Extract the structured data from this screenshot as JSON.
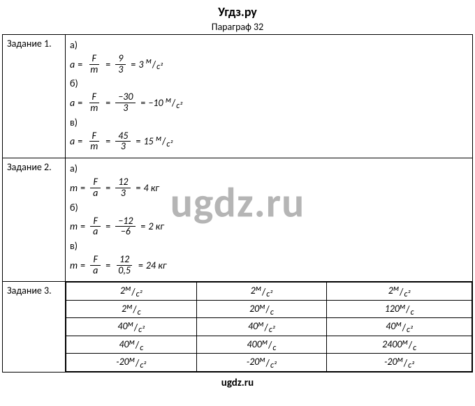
{
  "header": {
    "site": "Угдз.ру",
    "paragraph": "Параграф 32"
  },
  "watermark": "ugdz.ru",
  "footer": "ugdz.ru",
  "tasks": {
    "t1": {
      "label": "Задание 1.",
      "parts": {
        "a": {
          "letter": "а)",
          "lhs": "a",
          "var_num": "F",
          "var_den": "m",
          "num": "9",
          "den": "3",
          "result": "3",
          "unit_num": "м",
          "unit_den": "с²"
        },
        "b": {
          "letter": "б)",
          "lhs": "a",
          "var_num": "F",
          "var_den": "m",
          "num": "−30",
          "den": "3",
          "result": "−10",
          "unit_num": "м",
          "unit_den": "с²"
        },
        "v": {
          "letter": "в)",
          "lhs": "a",
          "var_num": "F",
          "var_den": "m",
          "num": "45",
          "den": "3",
          "result": "15",
          "unit_num": "м",
          "unit_den": "с²"
        }
      }
    },
    "t2": {
      "label": "Задание 2.",
      "parts": {
        "a": {
          "letter": "а)",
          "lhs": "m",
          "var_num": "F",
          "var_den": "a",
          "num": "12",
          "den": "3",
          "result": "4 кг"
        },
        "b": {
          "letter": "б)",
          "lhs": "m",
          "var_num": "F",
          "var_den": "a",
          "num": "−12",
          "den": "−6",
          "result": "2 кг"
        },
        "v": {
          "letter": "в)",
          "lhs": "m",
          "var_num": "F",
          "var_den": "a",
          "num": "12",
          "den": "0,5",
          "result": "24 кг"
        }
      }
    },
    "t3": {
      "label": "Задание 3.",
      "rows": [
        {
          "c1": {
            "val": "2",
            "un": "м",
            "ud": "с²"
          },
          "c2": {
            "val": "2",
            "un": "м",
            "ud": "с²"
          },
          "c3": {
            "val": "2",
            "un": "м",
            "ud": "с²"
          }
        },
        {
          "c1": {
            "val": "2",
            "un": "м",
            "ud": "с"
          },
          "c2": {
            "val": "20",
            "un": "м",
            "ud": "с"
          },
          "c3": {
            "val": "120",
            "un": "м",
            "ud": "с"
          }
        },
        {
          "c1": {
            "val": "40",
            "un": "м",
            "ud": "с²"
          },
          "c2": {
            "val": "40",
            "un": "м",
            "ud": "с²"
          },
          "c3": {
            "val": "40",
            "un": "м",
            "ud": "с²"
          }
        },
        {
          "c1": {
            "val": "40",
            "un": "м",
            "ud": "с"
          },
          "c2": {
            "val": "400",
            "un": "м",
            "ud": "с"
          },
          "c3": {
            "val": "2400",
            "un": "м",
            "ud": "с"
          }
        },
        {
          "c1": {
            "val": "-20",
            "un": "м",
            "ud": "с²"
          },
          "c2": {
            "val": "-20",
            "un": "м",
            "ud": "с²"
          },
          "c3": {
            "val": "-20",
            "un": "м",
            "ud": "с²"
          }
        }
      ]
    }
  }
}
